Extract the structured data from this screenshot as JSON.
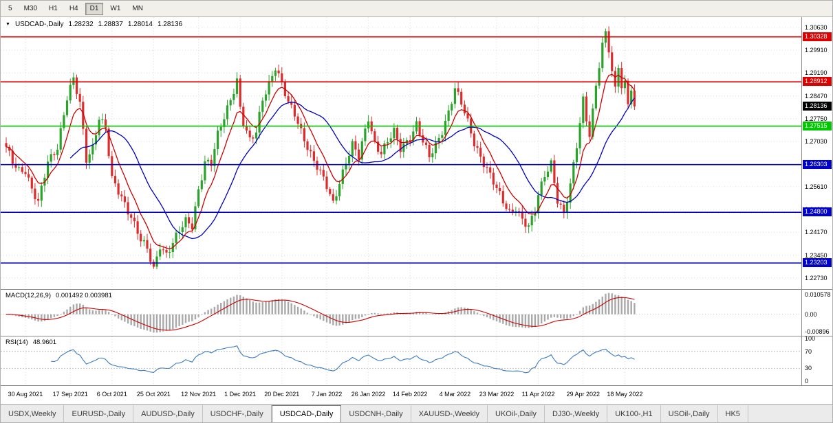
{
  "toolbar": {
    "timeframes": [
      {
        "label": "5",
        "active": false
      },
      {
        "label": "M30",
        "active": false
      },
      {
        "label": "H1",
        "active": false
      },
      {
        "label": "H4",
        "active": false
      },
      {
        "label": "D1",
        "active": true
      },
      {
        "label": "W1",
        "active": false
      },
      {
        "label": "MN",
        "active": false
      }
    ]
  },
  "chart": {
    "symbol_title": "USDCAD-,Daily",
    "quote": {
      "open": "1.28232",
      "high": "1.28837",
      "low": "1.28014",
      "close": "1.28136"
    }
  },
  "macd": {
    "label": "MACD(12,26,9)",
    "values": "0.001492 0.003981",
    "axis": [
      "0.010578",
      "0.00",
      "-0.00896"
    ]
  },
  "rsi": {
    "label": "RSI(14)",
    "value": "48.9601",
    "axis_values": [
      100,
      70,
      30,
      0
    ]
  },
  "tabs": {
    "items": [
      {
        "label": "USDX,Weekly",
        "active": false
      },
      {
        "label": "EURUSD-,Daily",
        "active": false
      },
      {
        "label": "AUDUSD-,Daily",
        "active": false
      },
      {
        "label": "USDCHF-,Daily",
        "active": false
      },
      {
        "label": "USDCAD-,Daily",
        "active": true
      },
      {
        "label": "USDCNH-,Daily",
        "active": false
      },
      {
        "label": "XAUUSD-,Weekly",
        "active": false
      },
      {
        "label": "UKOil-,Daily",
        "active": false
      },
      {
        "label": "DJ30-,Weekly",
        "active": false
      },
      {
        "label": "UK100-,H1",
        "active": false
      },
      {
        "label": "USOil-,Daily",
        "active": false
      },
      {
        "label": "HK5",
        "active": false
      }
    ]
  },
  "chart_data": {
    "type": "candlestick",
    "symbol": "USDCAD-",
    "timeframe": "Daily",
    "days": 197,
    "last_close": 1.28136,
    "price_range": {
      "min": 1.2238,
      "max": 1.3095
    },
    "price_axis": {
      "ticks": [
        "1.30630",
        "1.29910",
        "1.29190",
        "1.28470",
        "1.27750",
        "1.27030",
        "1.26310",
        "1.25610",
        "1.24890",
        "1.24170",
        "1.23450",
        "1.22730"
      ]
    },
    "levels": [
      {
        "value": 1.30328,
        "label": "1.30328",
        "color": "#dd0000"
      },
      {
        "value": 1.28912,
        "label": "1.28912",
        "color": "#dd0000"
      },
      {
        "value": 1.27515,
        "label": "1.27515",
        "color": "#00c800"
      },
      {
        "value": 1.26303,
        "label": "1.26303",
        "color": "#0000cc"
      },
      {
        "value": 1.248,
        "label": "1.24800",
        "color": "#0000cc"
      },
      {
        "value": 1.23203,
        "label": "1.23203",
        "color": "#0000cc"
      }
    ],
    "x_axis": {
      "labels": [
        "30 Aug 2021",
        "17 Sep 2021",
        "6 Oct 2021",
        "25 Oct 2021",
        "12 Nov 2021",
        "1 Dec 2021",
        "20 Dec 2021",
        "7 Jan 2022",
        "26 Jan 2022",
        "14 Feb 2022",
        "4 Mar 2022",
        "23 Mar 2022",
        "11 Apr 2022",
        "29 Apr 2022",
        "18 May 2022"
      ],
      "day_indices": [
        6,
        20,
        33,
        46,
        60,
        73,
        86,
        100,
        113,
        126,
        140,
        153,
        166,
        180,
        193
      ]
    },
    "anchors": [
      [
        0,
        1.268
      ],
      [
        2,
        1.264
      ],
      [
        4,
        1.2618
      ],
      [
        6,
        1.2615
      ],
      [
        8,
        1.255
      ],
      [
        10,
        1.2505
      ],
      [
        13,
        1.264
      ],
      [
        16,
        1.269
      ],
      [
        19,
        1.284
      ],
      [
        21,
        1.2895
      ],
      [
        23,
        1.282
      ],
      [
        25,
        1.265
      ],
      [
        27,
        1.269
      ],
      [
        29,
        1.278
      ],
      [
        31,
        1.274
      ],
      [
        33,
        1.258
      ],
      [
        36,
        1.253
      ],
      [
        39,
        1.247
      ],
      [
        42,
        1.239
      ],
      [
        44,
        1.236
      ],
      [
        46,
        1.23
      ],
      [
        48,
        1.238
      ],
      [
        50,
        1.235
      ],
      [
        53,
        1.24
      ],
      [
        56,
        1.245
      ],
      [
        58,
        1.244
      ],
      [
        60,
        1.2555
      ],
      [
        62,
        1.264
      ],
      [
        64,
        1.263
      ],
      [
        66,
        1.272
      ],
      [
        68,
        1.278
      ],
      [
        70,
        1.284
      ],
      [
        72,
        1.29
      ],
      [
        73,
        1.281
      ],
      [
        74,
        1.276
      ],
      [
        76,
        1.27
      ],
      [
        78,
        1.273
      ],
      [
        80,
        1.284
      ],
      [
        82,
        1.289
      ],
      [
        84,
        1.294
      ],
      [
        86,
        1.288
      ],
      [
        88,
        1.282
      ],
      [
        90,
        1.279
      ],
      [
        92,
        1.274
      ],
      [
        94,
        1.269
      ],
      [
        96,
        1.264
      ],
      [
        98,
        1.26
      ],
      [
        100,
        1.256
      ],
      [
        102,
        1.251
      ],
      [
        104,
        1.258
      ],
      [
        106,
        1.264
      ],
      [
        108,
        1.269
      ],
      [
        110,
        1.265
      ],
      [
        113,
        1.278
      ],
      [
        115,
        1.27
      ],
      [
        117,
        1.267
      ],
      [
        119,
        1.27
      ],
      [
        121,
        1.273
      ],
      [
        123,
        1.268
      ],
      [
        126,
        1.272
      ],
      [
        128,
        1.276
      ],
      [
        130,
        1.27
      ],
      [
        132,
        1.265
      ],
      [
        134,
        1.269
      ],
      [
        136,
        1.274
      ],
      [
        138,
        1.28
      ],
      [
        140,
        1.287
      ],
      [
        142,
        1.282
      ],
      [
        144,
        1.276
      ],
      [
        146,
        1.27
      ],
      [
        148,
        1.266
      ],
      [
        150,
        1.262
      ],
      [
        153,
        1.255
      ],
      [
        155,
        1.251
      ],
      [
        157,
        1.248
      ],
      [
        159,
        1.25
      ],
      [
        161,
        1.246
      ],
      [
        163,
        1.243
      ],
      [
        165,
        1.248
      ],
      [
        166,
        1.253
      ],
      [
        168,
        1.26
      ],
      [
        170,
        1.264
      ],
      [
        172,
        1.252
      ],
      [
        174,
        1.247
      ],
      [
        176,
        1.256
      ],
      [
        178,
        1.269
      ],
      [
        180,
        1.284
      ],
      [
        181,
        1.278
      ],
      [
        182,
        1.273
      ],
      [
        183,
        1.28
      ],
      [
        184,
        1.288
      ],
      [
        185,
        1.294
      ],
      [
        186,
        1.3
      ],
      [
        187,
        1.304
      ],
      [
        188,
        1.299
      ],
      [
        189,
        1.292
      ],
      [
        190,
        1.287
      ],
      [
        191,
        1.295
      ],
      [
        192,
        1.288
      ],
      [
        193,
        1.289
      ],
      [
        194,
        1.283
      ],
      [
        195,
        1.287
      ],
      [
        196,
        1.28136
      ]
    ],
    "moving_averages": [
      {
        "name": "fast",
        "type": "ema",
        "period": 8,
        "color": "#cc0000"
      },
      {
        "name": "slow",
        "type": "sma",
        "period": 21,
        "color": "#0000bb"
      }
    ],
    "indicators": [
      {
        "name": "MACD",
        "params": [
          12,
          26,
          9
        ],
        "values": [
          0.001492,
          0.003981
        ],
        "axis_range": [
          -0.00896,
          0.010578
        ]
      },
      {
        "name": "RSI",
        "params": [
          14
        ],
        "value": 48.9601,
        "levels": [
          70,
          30
        ]
      }
    ],
    "colors": {
      "up": "#2ba32b",
      "down": "#dd2c2c",
      "ma_fast": "#cc0000",
      "ma_slow": "#0000bb",
      "macd_hist": "#a9a9a9",
      "macd_signal": "#cc0000",
      "rsi_line": "#3a7abd",
      "grid": "#dcdcdc"
    }
  }
}
